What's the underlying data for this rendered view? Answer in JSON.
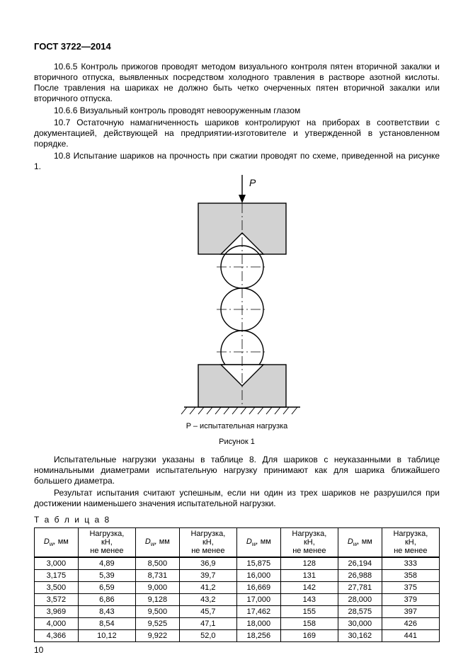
{
  "header": "ГОСТ 3722—2014",
  "paragraphs": {
    "p1": "10.6.5 Контроль прижогов проводят методом визуального контроля пятен вторичной закалки и вторичного отпуска, выявленных посредством холодного травления в растворе азотной кислоты. После травления на шариках не должно быть четко очерченных пятен вторичной закалки или вторичного отпуска.",
    "p2": "10.6.6 Визуальный контроль проводят невооруженным глазом",
    "p3": "10.7 Остаточную намагниченность шариков контролируют на приборах в соответствии с документацией, действующей на предприятии-изготовителе и утвержденной в установленном порядке.",
    "p4": "10.8 Испытание шариков на прочность при сжатии проводят по схеме, приведенной на рисунке 1.",
    "p5": "Испытательные нагрузки указаны в таблице 8. Для шариков с неуказанными в таблице номинальными диаметрами испытательную нагрузку принимают как для шарика ближайшего большего диаметра.",
    "p6": "Результат испытания считают успешным, если ни один из трех шариков не разрушился при достижении наименьшего значения испытательной нагрузки."
  },
  "figure": {
    "load_label": "P",
    "caption_small": "P – испытательная нагрузка",
    "caption_title": "Рисунок 1",
    "colors": {
      "stroke": "#000000",
      "fill_block": "#d2d2d2",
      "bg": "#ffffff"
    }
  },
  "table": {
    "label": "Т а б л и ц а   8",
    "head_dw_html": "<span class='it'>D<sub>w</sub>,</span> мм",
    "head_load_html": "Нагрузка,<br>кН,<br>не менее",
    "rows": [
      [
        "3,000",
        "4,89",
        "8,500",
        "36,9",
        "15,875",
        "128",
        "26,194",
        "333"
      ],
      [
        "3,175",
        "5,39",
        "8,731",
        "39,7",
        "16,000",
        "131",
        "26,988",
        "358"
      ],
      [
        "3,500",
        "6,59",
        "9,000",
        "41,2",
        "16,669",
        "142",
        "27,781",
        "375"
      ],
      [
        "3,572",
        "6,86",
        "9,128",
        "43,2",
        "17,000",
        "143",
        "28,000",
        "379"
      ],
      [
        "3,969",
        "8,43",
        "9,500",
        "45,7",
        "17,462",
        "155",
        "28,575",
        "397"
      ],
      [
        "4,000",
        "8,54",
        "9,525",
        "47,1",
        "18,000",
        "158",
        "30,000",
        "426"
      ],
      [
        "4,366",
        "10,12",
        "9,922",
        "52,0",
        "18,256",
        "169",
        "30,162",
        "441"
      ]
    ]
  },
  "page_number": "10"
}
